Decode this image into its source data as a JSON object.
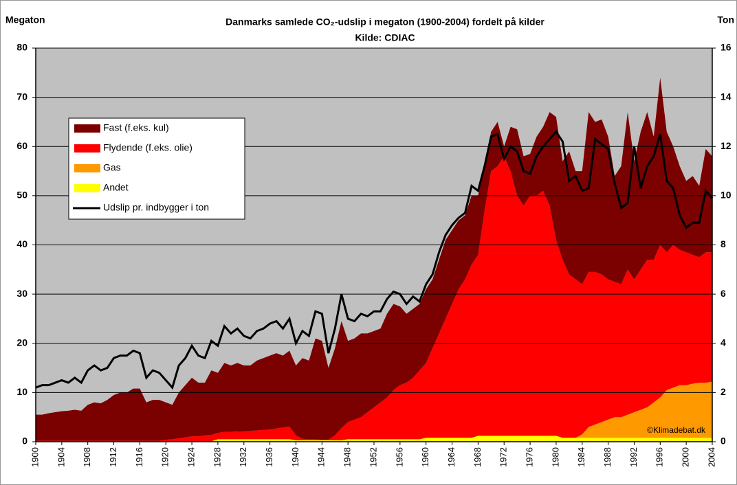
{
  "chart_data": {
    "type": "area",
    "title": "Danmarks samlede CO₂-udslip i megaton (1900-2004) fordelt på kilder",
    "subtitle": "Kilde: CDIAC",
    "y_label": "Megaton",
    "y2_label": "Ton",
    "annotation": "©Klimadebat.dk",
    "x": [
      1900,
      1901,
      1902,
      1903,
      1904,
      1905,
      1906,
      1907,
      1908,
      1909,
      1910,
      1911,
      1912,
      1913,
      1914,
      1915,
      1916,
      1917,
      1918,
      1919,
      1920,
      1921,
      1922,
      1923,
      1924,
      1925,
      1926,
      1927,
      1928,
      1929,
      1930,
      1931,
      1932,
      1933,
      1934,
      1935,
      1936,
      1937,
      1938,
      1939,
      1940,
      1941,
      1942,
      1943,
      1944,
      1945,
      1946,
      1947,
      1948,
      1949,
      1950,
      1951,
      1952,
      1953,
      1954,
      1955,
      1956,
      1957,
      1958,
      1959,
      1960,
      1961,
      1962,
      1963,
      1964,
      1965,
      1966,
      1967,
      1968,
      1969,
      1970,
      1971,
      1972,
      1973,
      1974,
      1975,
      1976,
      1977,
      1978,
      1979,
      1980,
      1981,
      1982,
      1983,
      1984,
      1985,
      1986,
      1987,
      1988,
      1989,
      1990,
      1991,
      1992,
      1993,
      1994,
      1995,
      1996,
      1997,
      1998,
      1999,
      2000,
      2001,
      2002,
      2003,
      2004
    ],
    "series": [
      {
        "name": "Fast (f.eks. kul)",
        "color": "#7b0000",
        "values": [
          5.3,
          5.3,
          5.6,
          5.8,
          6,
          6.1,
          6.3,
          6.1,
          7.3,
          7.8,
          7.6,
          8.3,
          9.3,
          9.8,
          9.8,
          10.6,
          10.6,
          7.8,
          8.3,
          8.3,
          7.6,
          7,
          9.3,
          10.6,
          11.9,
          10.9,
          10.7,
          13.1,
          12.2,
          14,
          13.5,
          13.9,
          13.4,
          13.3,
          14.2,
          14.6,
          15,
          15.3,
          14.6,
          15.4,
          14.2,
          16.4,
          16,
          20.5,
          20.1,
          14.6,
          17.7,
          21.7,
          16.5,
          16.5,
          17,
          16,
          15.5,
          15,
          17,
          17.5,
          16,
          14,
          14,
          13.5,
          15,
          14,
          15,
          16,
          15,
          14,
          13,
          14,
          12,
          9,
          8,
          9,
          2,
          9,
          13.5,
          10,
          8.5,
          12,
          13,
          19,
          25,
          20,
          25,
          22,
          23,
          32.5,
          30.5,
          31.5,
          29,
          21.5,
          24,
          32,
          24,
          28,
          30,
          25,
          34,
          24.5,
          20,
          17,
          14.5,
          16,
          14.5,
          21,
          19.5
        ]
      },
      {
        "name": "Flydende (f.eks. olie)",
        "color": "#ff0000",
        "values": [
          0.1,
          0.1,
          0.1,
          0.1,
          0.1,
          0.1,
          0.1,
          0.1,
          0.1,
          0.1,
          0.1,
          0.1,
          0.1,
          0.1,
          0.1,
          0.1,
          0.1,
          0.1,
          0.1,
          0.1,
          0.3,
          0.4,
          0.6,
          0.8,
          1,
          1,
          1.2,
          1.3,
          1.3,
          1.5,
          1.5,
          1.6,
          1.6,
          1.7,
          1.8,
          1.9,
          2,
          2.2,
          2.4,
          2.6,
          1,
          0.3,
          0.2,
          0.2,
          0.1,
          0.1,
          1,
          2.5,
          3.5,
          4,
          4.5,
          5.5,
          6.5,
          7.5,
          8.5,
          10,
          11,
          11.5,
          12.5,
          14,
          15.2,
          18.2,
          21.2,
          24.2,
          27.2,
          30.2,
          32.2,
          35.2,
          36.8,
          45.8,
          53.8,
          54.8,
          56.8,
          53.8,
          48.8,
          46.8,
          48.8,
          48.8,
          49.8,
          46.8,
          39.8,
          36.2,
          33.2,
          32.2,
          30.5,
          31.5,
          31,
          30,
          28.5,
          27.5,
          27,
          29.5,
          27,
          28.5,
          30,
          29,
          31,
          28,
          29,
          27.5,
          27,
          26.2,
          25.5,
          26.5,
          26.3
        ]
      },
      {
        "name": "Gas",
        "color": "#ff9900",
        "values": [
          0,
          0,
          0,
          0,
          0,
          0,
          0,
          0,
          0,
          0,
          0,
          0,
          0,
          0,
          0,
          0,
          0,
          0,
          0,
          0,
          0,
          0,
          0,
          0,
          0,
          0,
          0,
          0,
          0,
          0,
          0,
          0,
          0,
          0,
          0,
          0,
          0,
          0,
          0,
          0,
          0,
          0,
          0,
          0,
          0,
          0,
          0,
          0,
          0,
          0,
          0,
          0,
          0,
          0,
          0,
          0,
          0,
          0,
          0,
          0,
          0,
          0,
          0,
          0,
          0,
          0,
          0,
          0,
          0,
          0,
          0,
          0,
          0,
          0,
          0,
          0,
          0,
          0,
          0,
          0,
          0,
          0,
          0,
          0,
          0.7,
          2.2,
          2.7,
          3.2,
          3.7,
          4.2,
          4.2,
          4.7,
          5.2,
          5.7,
          6.2,
          7.2,
          8.2,
          9.7,
          10.2,
          10.7,
          10.7,
          11,
          11.2,
          11.2,
          11.4
        ]
      },
      {
        "name": "Andet",
        "color": "#ffff00",
        "values": [
          0.1,
          0.1,
          0.1,
          0.1,
          0.1,
          0.1,
          0.1,
          0.1,
          0.1,
          0.1,
          0.1,
          0.1,
          0.1,
          0.1,
          0.1,
          0.1,
          0.1,
          0.1,
          0.1,
          0.1,
          0.1,
          0.1,
          0.1,
          0.1,
          0.1,
          0.1,
          0.1,
          0.1,
          0.5,
          0.5,
          0.5,
          0.5,
          0.5,
          0.5,
          0.5,
          0.5,
          0.5,
          0.5,
          0.5,
          0.5,
          0.3,
          0.3,
          0.3,
          0.3,
          0.3,
          0.3,
          0.3,
          0.3,
          0.5,
          0.5,
          0.5,
          0.5,
          0.5,
          0.5,
          0.5,
          0.5,
          0.5,
          0.5,
          0.5,
          0.5,
          0.8,
          0.8,
          0.8,
          0.8,
          0.8,
          0.8,
          0.8,
          0.8,
          1.2,
          1.2,
          1.2,
          1.2,
          1.2,
          1.2,
          1.2,
          1.2,
          1.2,
          1.2,
          1.2,
          1.2,
          1.2,
          0.8,
          0.8,
          0.8,
          0.8,
          0.8,
          0.8,
          0.8,
          0.8,
          0.8,
          0.8,
          0.8,
          0.8,
          0.8,
          0.8,
          0.8,
          0.8,
          0.8,
          0.8,
          0.8,
          0.8,
          0.8,
          0.8,
          0.8,
          0.8
        ]
      },
      {
        "name": "Udslip pr. indbygger i ton",
        "color": "#000000",
        "axis": "y2",
        "values": [
          2.2,
          2.3,
          2.3,
          2.4,
          2.5,
          2.4,
          2.6,
          2.4,
          2.9,
          3.1,
          2.9,
          3,
          3.4,
          3.5,
          3.5,
          3.7,
          3.6,
          2.6,
          2.9,
          2.8,
          2.5,
          2.2,
          3.1,
          3.4,
          3.9,
          3.5,
          3.4,
          4.1,
          3.9,
          4.7,
          4.4,
          4.6,
          4.3,
          4.2,
          4.5,
          4.6,
          4.8,
          4.9,
          4.6,
          5,
          4,
          4.5,
          4.3,
          5.3,
          5.2,
          3.6,
          4.6,
          6,
          5,
          4.9,
          5.2,
          5.1,
          5.3,
          5.3,
          5.8,
          6.1,
          6,
          5.6,
          5.9,
          5.7,
          6.4,
          6.8,
          7.7,
          8.4,
          8.8,
          9.1,
          9.3,
          10.4,
          10.2,
          11.2,
          12.4,
          12.5,
          11.5,
          12,
          11.8,
          11,
          10.9,
          11.6,
          12,
          12.3,
          12.6,
          12.2,
          10.6,
          10.8,
          10.2,
          10.3,
          12.3,
          12.1,
          11.9,
          10.5,
          9.5,
          9.7,
          12,
          10.3,
          11.2,
          11.6,
          12.5,
          10.6,
          10.3,
          9.2,
          8.7,
          8.9,
          8.9,
          10.2,
          9.9
        ]
      }
    ],
    "xlim": [
      1900,
      2004
    ],
    "xticks": [
      1900,
      1904,
      1908,
      1912,
      1916,
      1920,
      1924,
      1928,
      1932,
      1936,
      1940,
      1944,
      1948,
      1952,
      1956,
      1960,
      1964,
      1968,
      1972,
      1976,
      1980,
      1984,
      1988,
      1992,
      1996,
      2000,
      2004
    ],
    "ylim": [
      0,
      80
    ],
    "yticks": [
      0,
      10,
      20,
      30,
      40,
      50,
      60,
      70,
      80
    ],
    "y2lim": [
      0,
      16
    ],
    "y2ticks": [
      0,
      2,
      4,
      6,
      8,
      10,
      12,
      14,
      16
    ],
    "grid": true,
    "background": "#c0c0c0"
  }
}
